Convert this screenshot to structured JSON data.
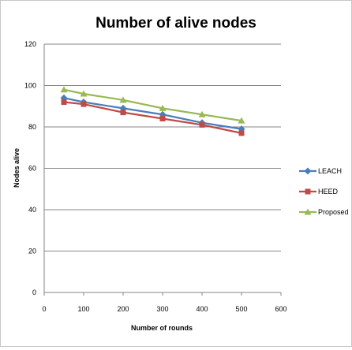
{
  "chart_data": {
    "type": "line",
    "title": "Number of alive nodes",
    "xlabel": "Number of rounds",
    "ylabel": "Nodes alive",
    "xlim": [
      0,
      600
    ],
    "ylim": [
      0,
      120
    ],
    "xticks": [
      0,
      100,
      200,
      300,
      400,
      500,
      600
    ],
    "yticks": [
      0,
      20,
      40,
      60,
      80,
      100,
      120
    ],
    "grid": "horizontal",
    "legend_position": "right",
    "x": [
      50,
      100,
      200,
      300,
      400,
      500
    ],
    "series": [
      {
        "name": "LEACH",
        "color": "#4a7ebb",
        "marker": "diamond",
        "values": [
          94,
          92,
          89,
          86,
          82,
          79
        ]
      },
      {
        "name": "HEED",
        "color": "#be4b48",
        "marker": "square",
        "values": [
          92,
          91,
          87,
          84,
          81,
          77
        ]
      },
      {
        "name": "Proposed",
        "color": "#98b954",
        "marker": "triangle",
        "values": [
          98,
          96,
          93,
          89,
          86,
          83
        ]
      }
    ]
  }
}
